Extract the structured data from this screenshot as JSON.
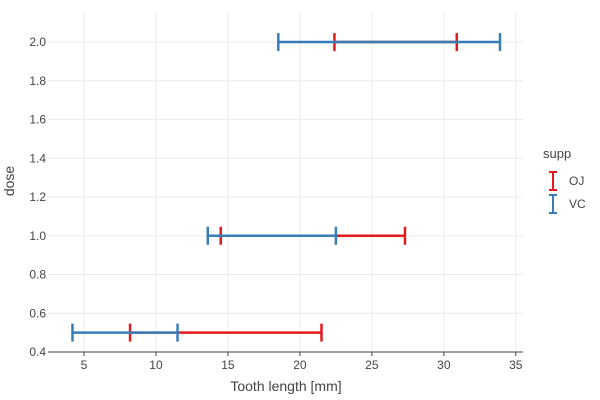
{
  "chart_data": {
    "type": "errorbar",
    "orientation": "horizontal",
    "xlabel": "Tooth length [mm]",
    "ylabel": "dose",
    "xlim": [
      2.5,
      35.5
    ],
    "ylim": [
      0.4,
      2.15
    ],
    "x_ticks": [
      5,
      10,
      15,
      20,
      25,
      30,
      35
    ],
    "y_ticks": [
      0.4,
      0.6,
      0.8,
      1.0,
      1.2,
      1.4,
      1.6,
      1.8,
      2.0
    ],
    "y_tick_labels": [
      "0.4",
      "0.6",
      "0.8",
      "1.0",
      "1.2",
      "1.4",
      "1.6",
      "1.8",
      "2.0"
    ],
    "grid": true,
    "legend": {
      "title": "supp",
      "position": "right"
    },
    "series": [
      {
        "name": "OJ",
        "color": "#e41a1c",
        "points": [
          {
            "dose": 0.5,
            "xmin": 8.2,
            "xmax": 21.5
          },
          {
            "dose": 1.0,
            "xmin": 14.5,
            "xmax": 27.3
          },
          {
            "dose": 2.0,
            "xmin": 22.4,
            "xmax": 30.9
          }
        ]
      },
      {
        "name": "VC",
        "color": "#377eb8",
        "points": [
          {
            "dose": 0.5,
            "xmin": 4.2,
            "xmax": 11.5
          },
          {
            "dose": 1.0,
            "xmin": 13.6,
            "xmax": 22.5
          },
          {
            "dose": 2.0,
            "xmin": 18.5,
            "xmax": 33.9
          }
        ]
      }
    ]
  }
}
